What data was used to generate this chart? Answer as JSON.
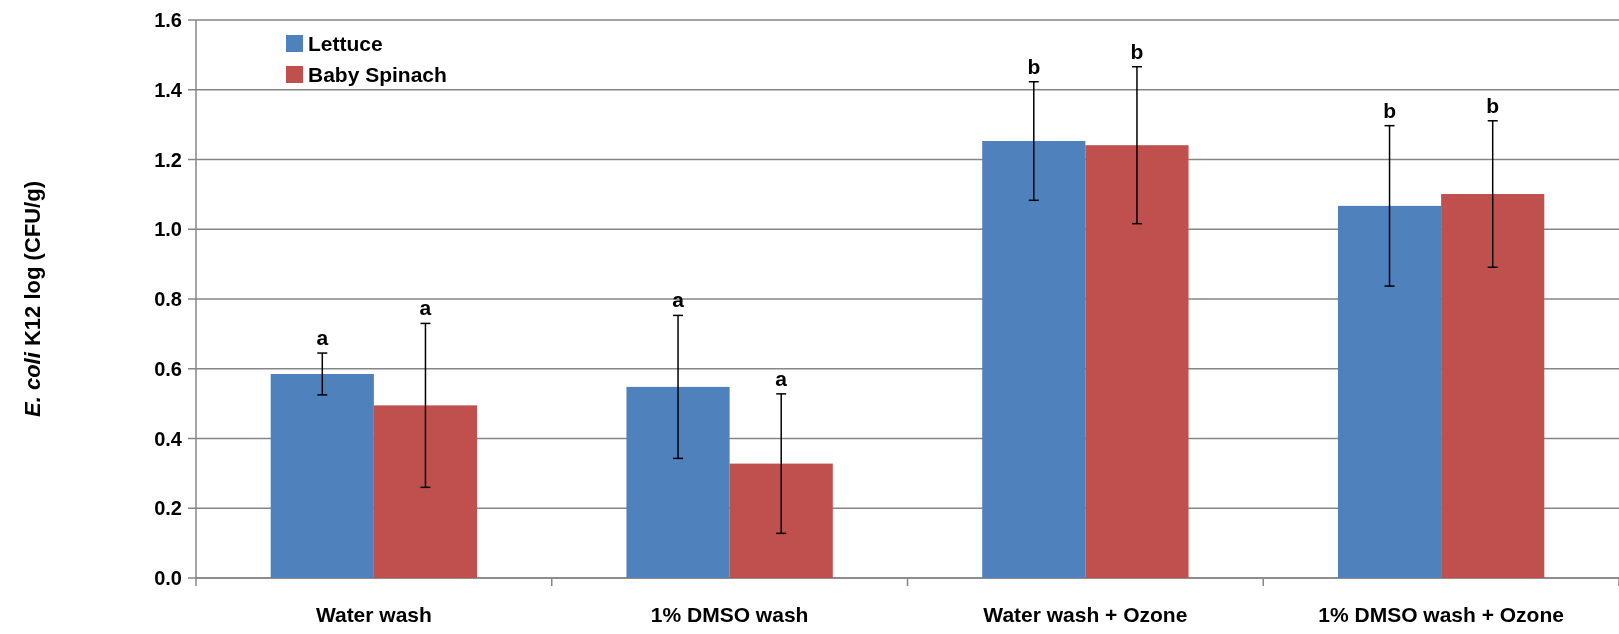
{
  "chart_data": {
    "type": "bar",
    "ylabel": "E. coli K12 log (CFU/g)",
    "categories": [
      "Water wash",
      "1% DMSO wash",
      "Water wash + Ozone",
      "1% DMSO wash + Ozone"
    ],
    "series": [
      {
        "name": "Lettuce",
        "color": "#4f81bd",
        "values": [
          0.585,
          0.548,
          1.253,
          1.067
        ],
        "errors": [
          0.06,
          0.205,
          0.17,
          0.23
        ]
      },
      {
        "name": "Baby Spinach",
        "color": "#c0504d",
        "values": [
          0.495,
          0.328,
          1.241,
          1.101
        ],
        "errors": [
          0.235,
          0.2,
          0.225,
          0.21
        ]
      }
    ],
    "annotations": [
      "a",
      "a",
      "a",
      "a",
      "b",
      "b",
      "b",
      "b"
    ],
    "ylim": [
      0,
      1.6
    ],
    "yticks": [
      {
        "value": 0,
        "label": "0.0"
      },
      {
        "value": 0.2,
        "label": "0.2"
      },
      {
        "value": 0.4,
        "label": "0.4"
      },
      {
        "value": 0.6,
        "label": "0.6"
      },
      {
        "value": 0.8,
        "label": "0.8"
      },
      {
        "value": 1,
        "label": "1.0"
      },
      {
        "value": 1.2,
        "label": "1.2"
      },
      {
        "value": 1.4,
        "label": "1.4"
      },
      {
        "value": 1.6,
        "label": "1.6"
      }
    ],
    "grid": "y",
    "legend": "top left"
  }
}
